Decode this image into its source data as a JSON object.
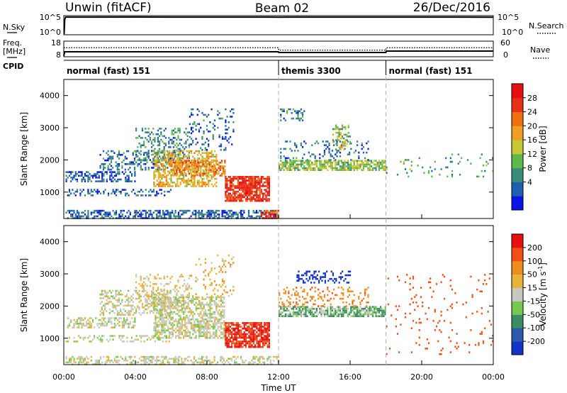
{
  "header": {
    "title": "Unwin (fitACF)",
    "beam": "Beam 02",
    "date": "26/Dec/2016"
  },
  "top_panels": {
    "nsky": {
      "label": "N.Sky",
      "tick_top": "10^5",
      "tick_bottom": "10^0",
      "right_label": "N.Search",
      "right_tick_top": "10^5",
      "right_tick_bottom": "10^0"
    },
    "freq": {
      "label_line1": "Freq.",
      "label_line2": "[MHz]",
      "tick_top": "18",
      "tick_bottom": "8",
      "right_label": "Nave",
      "right_tick_top": "60",
      "right_tick_bottom": "0"
    },
    "cpid": {
      "label": "CPID",
      "modes": [
        {
          "name": "normal (fast) 151",
          "start_hour": 0,
          "end_hour": 12
        },
        {
          "name": "themis 3300",
          "start_hour": 12,
          "end_hour": 18
        },
        {
          "name": "normal (fast) 151",
          "start_hour": 18,
          "end_hour": 24
        }
      ]
    }
  },
  "x_axis": {
    "label": "Time UT",
    "ticks": [
      "00:00",
      "04:00",
      "08:00",
      "12:00",
      "16:00",
      "20:00",
      "00:00"
    ]
  },
  "power_panel": {
    "ylabel": "Slant Range [km]",
    "yticks": [
      "4000",
      "3000",
      "2000",
      "1000"
    ],
    "colorbar_label": "Power [dB]",
    "colorbar_ticks": [
      "28",
      "24",
      "20",
      "16",
      "12",
      "8",
      "4"
    ],
    "colors": [
      "#0a14e6",
      "#1f5fb0",
      "#3a8c78",
      "#5fb84a",
      "#c8c832",
      "#f0a020",
      "#f07010",
      "#e63018",
      "#e61010"
    ]
  },
  "velocity_panel": {
    "ylabel": "Slant Range [km]",
    "yticks": [
      "4000",
      "3000",
      "2000",
      "1000"
    ],
    "colorbar_label": "Velocity [m s",
    "colorbar_label_sup": "-1",
    "colorbar_label_end": "]",
    "colorbar_ticks": [
      "200",
      "100",
      "50",
      "15",
      "-15",
      "-50",
      "-100",
      "-200"
    ],
    "colors": [
      "#1232c8",
      "#2a5aa8",
      "#3a8c64",
      "#78c850",
      "#c8c8c0",
      "#e6b43c",
      "#f08c1e",
      "#f05014",
      "#e61010"
    ]
  },
  "chart_data": [
    {
      "type": "line",
      "title": "N.Sky / N.Search",
      "x_range_hours": [
        0,
        24
      ],
      "ylim": [
        1,
        100000
      ],
      "y_scale": "log",
      "description_note": "",
      "series": [
        {
          "values_x_hours": [
            0.02,
            0.05,
            0.1,
            2,
            4,
            6,
            8,
            10,
            12,
            12.5,
            18,
            20,
            22,
            24
          ],
          "values_y": [
            1,
            10000,
            60000,
            60000,
            62000,
            60000,
            61000,
            60000,
            58000,
            60000,
            60000,
            59000,
            60000,
            58000
          ]
        }
      ]
    },
    {
      "type": "line",
      "title": "Freq. / Nave",
      "x_range_hours": [
        0,
        24
      ],
      "ylim": [
        8,
        18
      ],
      "series": [
        {
          "name": "Freq.",
          "values_x_hours": [
            0,
            0.05,
            12,
            12.01,
            18,
            18.01,
            24
          ],
          "values_y": [
            8,
            11,
            11,
            10.5,
            10.5,
            11.5,
            11.5
          ]
        },
        {
          "name": "Nave",
          "values_x_hours": [
            0,
            12,
            12.01,
            18,
            18.01,
            24
          ],
          "values_y": [
            35,
            35,
            25,
            25,
            35,
            35
          ]
        }
      ]
    },
    {
      "type": "heatmap",
      "panel": "power",
      "x_range_hours": [
        0,
        24
      ],
      "y_range_km": [
        180,
        4500
      ],
      "ylabel": "Slant Range [km]",
      "colorbar_label": "Power [dB]",
      "color_range": [
        0,
        32
      ],
      "regions": [
        {
          "x0": 0.1,
          "x1": 12,
          "y0": 180,
          "y1": 450,
          "value": 6,
          "density": 0.55
        },
        {
          "x0": 0.1,
          "x1": 4,
          "y0": 1350,
          "y1": 1650,
          "value": 5,
          "density": 0.5
        },
        {
          "x0": 0.1,
          "x1": 6,
          "y0": 900,
          "y1": 1100,
          "value": 5,
          "density": 0.3
        },
        {
          "x0": 2,
          "x1": 6,
          "y0": 1700,
          "y1": 2300,
          "value": 7,
          "density": 0.35
        },
        {
          "x0": 4,
          "x1": 7,
          "y0": 2000,
          "y1": 3000,
          "value": 8,
          "density": 0.3
        },
        {
          "x0": 5,
          "x1": 8.5,
          "y0": 1200,
          "y1": 2300,
          "value": 18,
          "density": 0.55
        },
        {
          "x0": 6,
          "x1": 9,
          "y0": 1500,
          "y1": 2000,
          "value": 22,
          "density": 0.55
        },
        {
          "x0": 9,
          "x1": 11.5,
          "y0": 700,
          "y1": 1500,
          "value": 28,
          "density": 0.8
        },
        {
          "x0": 11,
          "x1": 12,
          "y0": 200,
          "y1": 450,
          "value": 26,
          "density": 0.7
        },
        {
          "x0": 7,
          "x1": 9.5,
          "y0": 2300,
          "y1": 3600,
          "value": 6,
          "density": 0.15
        },
        {
          "x0": 12,
          "x1": 18,
          "y0": 1700,
          "y1": 2000,
          "value": 14,
          "density": 0.7
        },
        {
          "x0": 12,
          "x1": 17,
          "y0": 2000,
          "y1": 2600,
          "value": 6,
          "density": 0.2
        },
        {
          "x0": 12,
          "x1": 13.5,
          "y0": 3200,
          "y1": 3600,
          "value": 8,
          "density": 0.3
        },
        {
          "x0": 15,
          "x1": 16,
          "y0": 2300,
          "y1": 3100,
          "value": 14,
          "density": 0.35
        },
        {
          "x0": 18,
          "x1": 24,
          "y0": 1500,
          "y1": 2200,
          "value": 10,
          "density": 0.05
        }
      ]
    },
    {
      "type": "heatmap",
      "panel": "velocity",
      "x_range_hours": [
        0,
        24
      ],
      "y_range_km": [
        180,
        4500
      ],
      "ylabel": "Slant Range [km]",
      "colorbar_label": "Velocity [m s^-1]",
      "color_range": [
        -250,
        250
      ],
      "regions": [
        {
          "x0": 0.1,
          "x1": 12,
          "y0": 180,
          "y1": 450,
          "value": 0,
          "density": 0.45
        },
        {
          "x0": 0.1,
          "x1": 4,
          "y0": 1350,
          "y1": 1650,
          "value": 0,
          "density": 0.45
        },
        {
          "x0": 0.1,
          "x1": 6,
          "y0": 900,
          "y1": 1100,
          "value": 0,
          "density": 0.3
        },
        {
          "x0": 2,
          "x1": 6,
          "y0": 1700,
          "y1": 2500,
          "value": 0,
          "density": 0.4
        },
        {
          "x0": 4,
          "x1": 7,
          "y0": 2000,
          "y1": 3000,
          "value": -20,
          "density": 0.25
        },
        {
          "x0": 5,
          "x1": 9,
          "y0": 1000,
          "y1": 2300,
          "value": 0,
          "density": 0.6
        },
        {
          "x0": 9,
          "x1": 11.5,
          "y0": 700,
          "y1": 1500,
          "value": -200,
          "density": 0.8
        },
        {
          "x0": 7,
          "x1": 9.5,
          "y0": 2300,
          "y1": 3600,
          "value": -40,
          "density": 0.12
        },
        {
          "x0": 12,
          "x1": 18,
          "y0": 1700,
          "y1": 2000,
          "value": 30,
          "density": 0.7
        },
        {
          "x0": 12,
          "x1": 17,
          "y0": 2000,
          "y1": 2600,
          "value": -80,
          "density": 0.2
        },
        {
          "x0": 13,
          "x1": 16,
          "y0": 2700,
          "y1": 3100,
          "value": 220,
          "density": 0.4
        },
        {
          "x0": 18,
          "x1": 24,
          "y0": 500,
          "y1": 3000,
          "value": -150,
          "density": 0.04
        }
      ]
    }
  ]
}
